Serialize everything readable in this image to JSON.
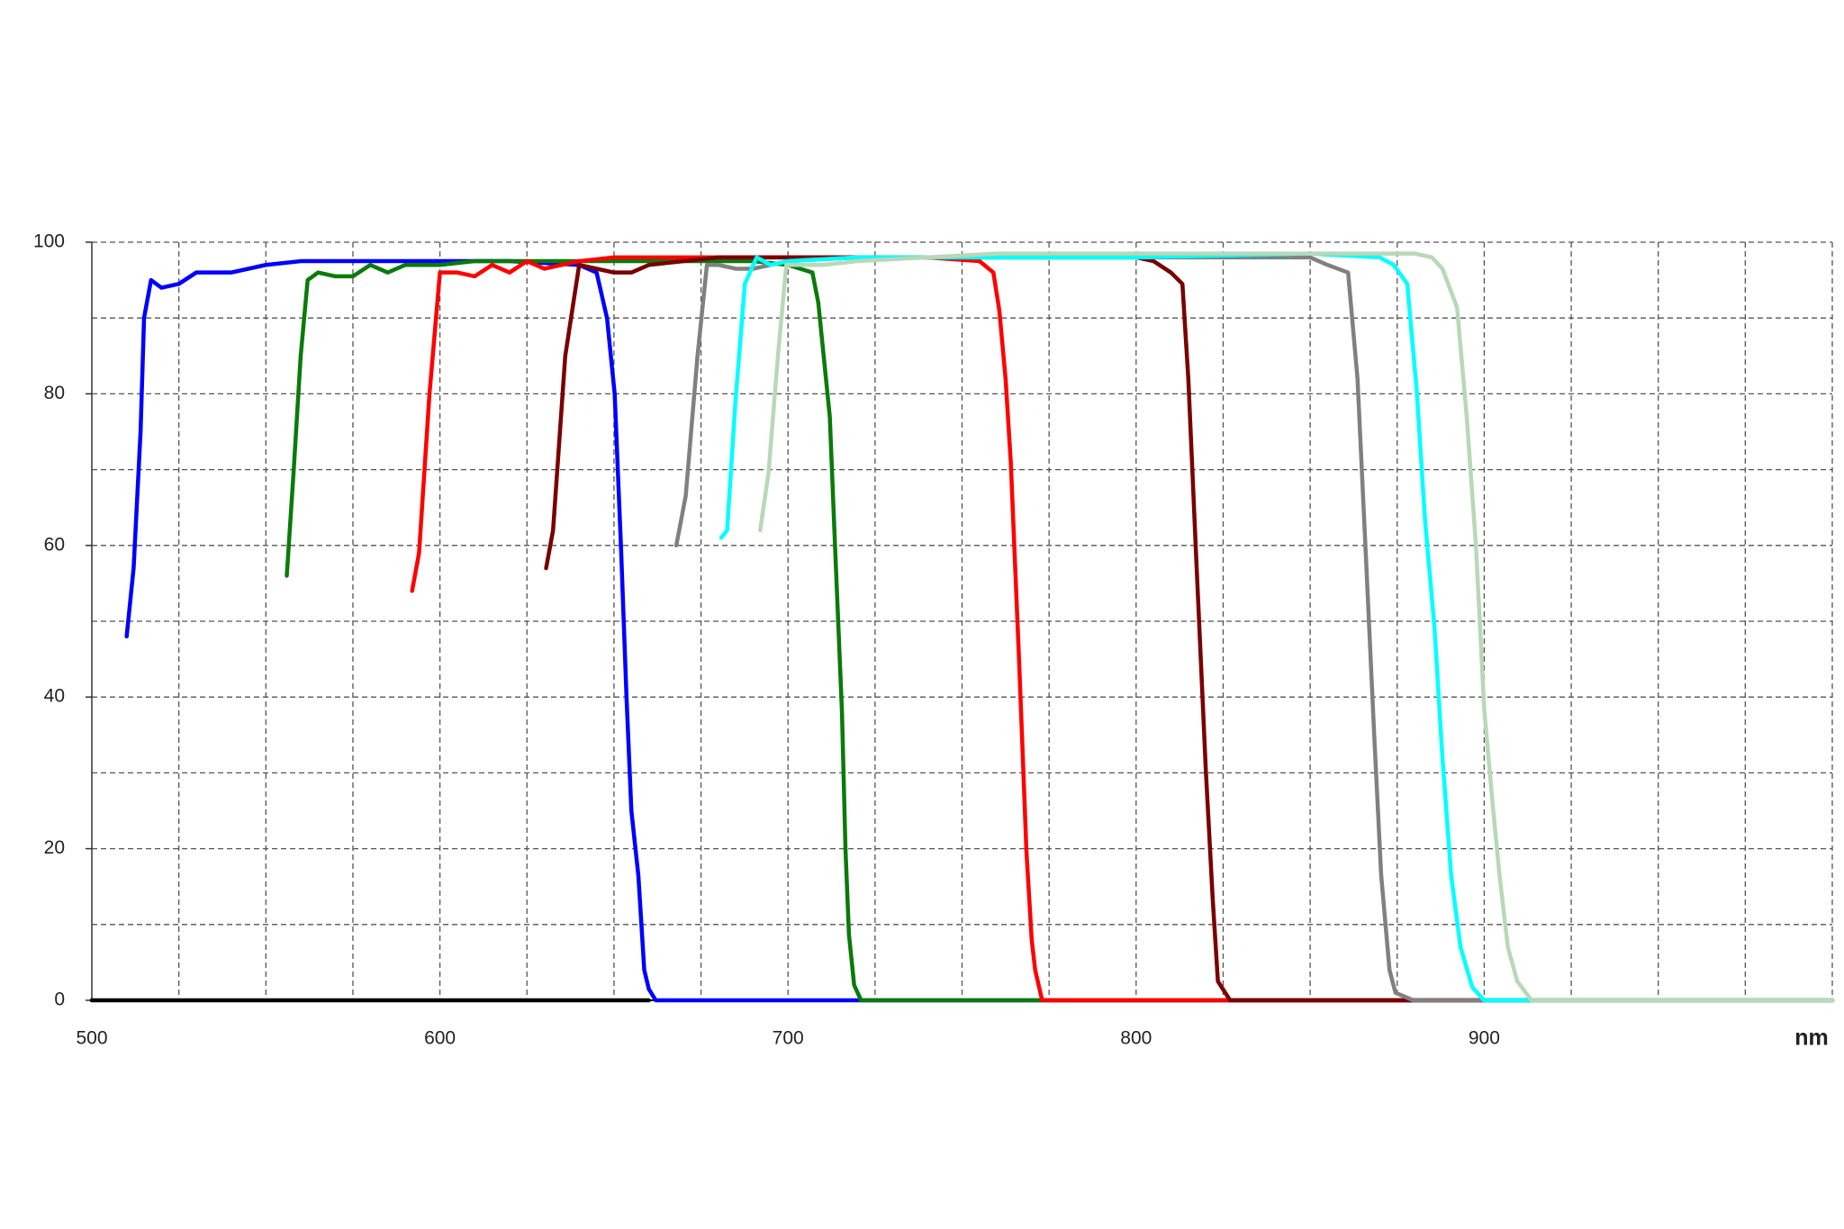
{
  "chart_data": {
    "type": "line",
    "x_label": "nm",
    "xlim": [
      500,
      1000
    ],
    "ylim": [
      0,
      100
    ],
    "xticks": [
      500,
      600,
      700,
      800,
      900
    ],
    "yticks": [
      0,
      20,
      40,
      60,
      80,
      100
    ],
    "xgrid": [
      525,
      550,
      575,
      600,
      625,
      650,
      675,
      700,
      725,
      750,
      775,
      800,
      825,
      850,
      875,
      900,
      925,
      950,
      975,
      1000
    ],
    "ygrid": [
      10,
      20,
      30,
      40,
      50,
      60,
      70,
      80,
      90,
      100
    ],
    "series": [
      {
        "color": "#000000",
        "x": [
          500,
          660
        ],
        "values": [
          0,
          0
        ]
      },
      {
        "color": "#0000ff",
        "x": [
          510,
          512,
          514,
          515,
          517,
          520,
          525,
          530,
          540,
          550,
          560,
          580,
          600,
          620,
          640,
          645,
          648,
          650.2,
          652,
          653.6,
          655,
          657,
          658.7,
          660,
          662,
          1000
        ],
        "values": [
          48,
          57,
          75,
          90,
          95,
          94,
          94.5,
          96,
          96,
          97,
          97.5,
          97.5,
          97.5,
          97.5,
          97,
          96,
          90,
          80,
          60,
          40,
          25,
          16.5,
          4,
          1.5,
          0,
          0
        ]
      },
      {
        "color": "#0a7a0a",
        "x": [
          556,
          558,
          560,
          562,
          565,
          570,
          575,
          580,
          585,
          590,
          600,
          610,
          650,
          690,
          700,
          707,
          708.7,
          712,
          713.5,
          715.5,
          716.5,
          717.5,
          719,
          721,
          1000
        ],
        "values": [
          56,
          70,
          85,
          95,
          96,
          95.5,
          95.5,
          97,
          96,
          97,
          97,
          97.5,
          97.5,
          97.5,
          97,
          96,
          92,
          77,
          60,
          38,
          20,
          8.7,
          2,
          0,
          0
        ]
      },
      {
        "color": "#ff0000",
        "x": [
          592,
          594,
          597,
          600,
          605,
          610,
          615,
          620,
          625,
          630,
          640,
          650,
          700,
          740,
          755,
          759,
          760.7,
          762.5,
          764,
          766.4,
          768.5,
          770,
          771,
          773,
          1000
        ],
        "values": [
          54,
          59,
          80,
          96,
          96,
          95.5,
          97,
          96,
          97.5,
          96.5,
          97.5,
          98,
          98,
          98,
          97.5,
          96,
          91,
          82,
          71,
          44.6,
          19.6,
          8,
          4,
          0,
          0
        ]
      },
      {
        "color": "#7a0000",
        "x": [
          630.5,
          632.5,
          636,
          640,
          650,
          655,
          660,
          670,
          680,
          700,
          800,
          805,
          810,
          813.3,
          815,
          817.4,
          820,
          822,
          823.5,
          827,
          1000
        ],
        "values": [
          57,
          62,
          85,
          97,
          96,
          96,
          97,
          97.5,
          98,
          98,
          98,
          97.5,
          96,
          94.5,
          82,
          57,
          30.6,
          13.4,
          2.5,
          0,
          0
        ]
      },
      {
        "color": "#808080",
        "x": [
          667.9,
          670.6,
          674,
          676.7,
          680,
          685,
          690,
          700,
          720,
          800,
          850,
          855,
          860.9,
          863.6,
          866,
          868.4,
          870.4,
          872.8,
          874.5,
          879.6,
          1000
        ],
        "values": [
          60,
          66.5,
          85,
          97,
          97,
          96.5,
          96.5,
          97.5,
          98,
          98,
          98,
          97,
          96,
          82,
          58.7,
          35,
          16.5,
          4,
          1,
          0,
          0
        ]
      },
      {
        "color": "#00ffff",
        "x": [
          680.8,
          682.5,
          684.9,
          687.6,
          691,
          695,
          700,
          720,
          750,
          800,
          850,
          870,
          874,
          877.9,
          880.6,
          883,
          885.7,
          888,
          890.5,
          893.2,
          896.6,
          900,
          1000
        ],
        "values": [
          61,
          62,
          79,
          94.5,
          98,
          97,
          97.5,
          98,
          98,
          98,
          98.5,
          98,
          97,
          94.5,
          80.5,
          63.3,
          49.3,
          32,
          16.5,
          7,
          1.7,
          0,
          0
        ]
      },
      {
        "color": "#b8d8b8",
        "x": [
          692,
          694.4,
          697.1,
          699.5,
          710,
          720,
          740,
          760,
          800,
          850,
          880,
          885,
          888,
          892.2,
          894.9,
          897.6,
          900,
          902.4,
          904.4,
          906.8,
          909.5,
          913.6,
          1000
        ],
        "values": [
          62,
          69.6,
          85,
          97,
          97,
          97.5,
          98,
          98.5,
          98.5,
          98.5,
          98.5,
          98,
          96.5,
          91.4,
          77.4,
          60.2,
          38.4,
          26,
          16.5,
          7,
          2.5,
          0,
          0
        ]
      }
    ]
  }
}
